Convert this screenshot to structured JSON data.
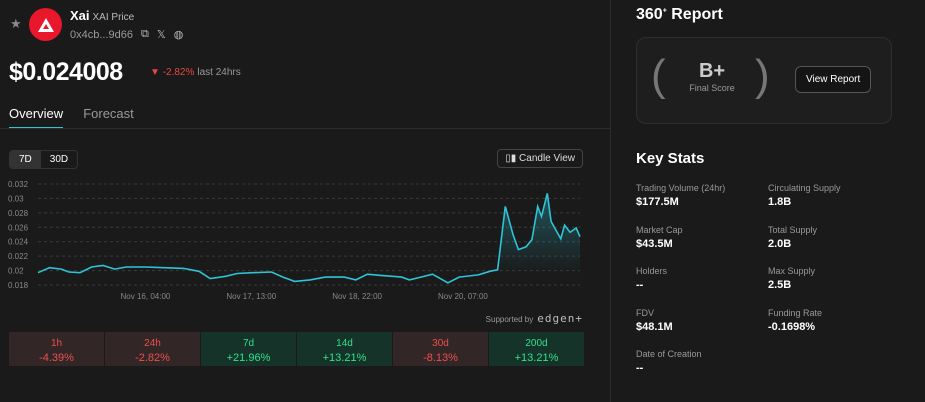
{
  "token": {
    "name": "Xai",
    "symbol_label": "XAI Price",
    "address": "0x4cb...9d66",
    "price": "$0.024008",
    "change": "-2.82%",
    "change_label": "last 24hrs",
    "logo_color": "#e8172c"
  },
  "tabs": [
    {
      "label": "Overview",
      "active": true
    },
    {
      "label": "Forecast",
      "active": false
    }
  ],
  "ranges": [
    "7D",
    "30D"
  ],
  "candle_label": "Candle View",
  "supported": {
    "label": "Supported by",
    "brand": "edgen+"
  },
  "performance": [
    {
      "period": "1h",
      "value": "-4.39%",
      "trend": "neg"
    },
    {
      "period": "24h",
      "value": "-2.82%",
      "trend": "neg"
    },
    {
      "period": "7d",
      "value": "+21.96%",
      "trend": "pos"
    },
    {
      "period": "14d",
      "value": "+13.21%",
      "trend": "pos"
    },
    {
      "period": "30d",
      "value": "-8.13%",
      "trend": "neg"
    },
    {
      "period": "200d",
      "value": "+13.21%",
      "trend": "pos"
    }
  ],
  "report": {
    "title": "360",
    "title_sup": "+",
    "title_suffix": "Report",
    "grade": "B+",
    "grade_label": "Final Score",
    "button": "View Report"
  },
  "key_stats": {
    "title": "Key Stats",
    "items": [
      {
        "label": "Trading Volume (24hr)",
        "value": "$177.5M"
      },
      {
        "label": "Circulating Supply",
        "value": "1.8B"
      },
      {
        "label": "Market Cap",
        "value": "$43.5M"
      },
      {
        "label": "Total Supply",
        "value": "2.0B"
      },
      {
        "label": "Holders",
        "value": "--"
      },
      {
        "label": "Max Supply",
        "value": "2.5B"
      },
      {
        "label": "FDV",
        "value": "$48.1M"
      },
      {
        "label": "Funding Rate",
        "value": "-0.1698%"
      },
      {
        "label": "Date of Creation",
        "value": "--"
      }
    ]
  },
  "chart_data": {
    "type": "area",
    "line_color": "#2ec4d6",
    "ylim": [
      0.018,
      0.032
    ],
    "yticks": [
      "0.032",
      "0.03",
      "0.028",
      "0.026",
      "0.024",
      "0.022",
      "0.02",
      "0.018"
    ],
    "xlim_hours": [
      0,
      169
    ],
    "xticks": [
      {
        "hour": 33.5,
        "label": "Nov 16, 04:00"
      },
      {
        "hour": 66.5,
        "label": "Nov 17, 13:00"
      },
      {
        "hour": 99.5,
        "label": "Nov 18, 22:00"
      },
      {
        "hour": 132.5,
        "label": "Nov 20, 07:00"
      }
    ],
    "x_hours": [
      0,
      3.6,
      7.2,
      9.6,
      13.1,
      16.7,
      20.3,
      23.9,
      27.5,
      33.4,
      39.4,
      45.4,
      50.2,
      53.7,
      58.5,
      62.1,
      66.9,
      72.8,
      76.4,
      80,
      84.8,
      89.6,
      95.5,
      99.1,
      102.7,
      107.5,
      113.4,
      115.8,
      119.4,
      123,
      127.8,
      131.3,
      137.3,
      140.9,
      143.3,
      145.7,
      148.1,
      149.8,
      152.2,
      154,
      155.8,
      157,
      158.8,
      160,
      163,
      164.2,
      165.9,
      167.8,
      169
    ],
    "values": [
      0.0197,
      0.0204,
      0.0202,
      0.0198,
      0.0197,
      0.0205,
      0.0207,
      0.0202,
      0.0205,
      0.0205,
      0.0204,
      0.0203,
      0.0199,
      0.0189,
      0.0192,
      0.0196,
      0.0197,
      0.0198,
      0.0191,
      0.0185,
      0.0187,
      0.0191,
      0.0191,
      0.0187,
      0.0195,
      0.0193,
      0.0191,
      0.0187,
      0.0191,
      0.0195,
      0.0183,
      0.0191,
      0.0194,
      0.0199,
      0.0201,
      0.0289,
      0.025,
      0.0229,
      0.0233,
      0.0243,
      0.0289,
      0.0275,
      0.0307,
      0.0268,
      0.0244,
      0.0263,
      0.0253,
      0.0259,
      0.0247
    ]
  }
}
